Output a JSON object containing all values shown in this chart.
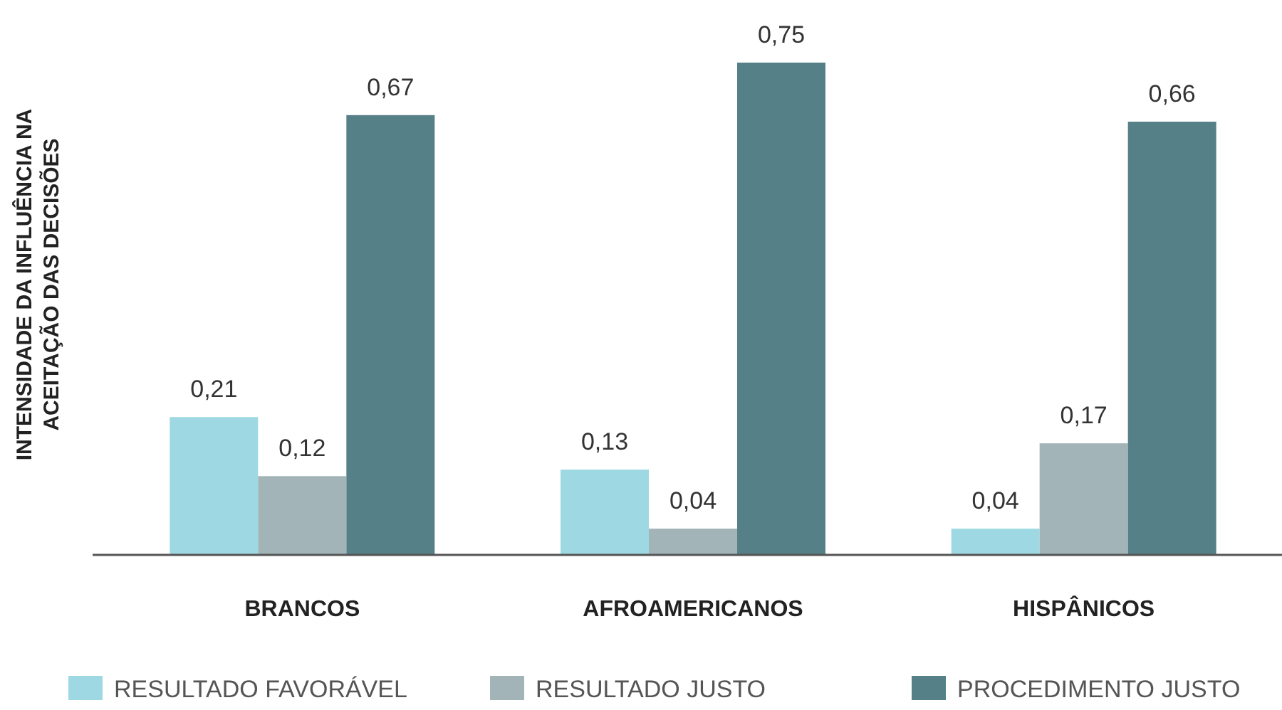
{
  "chart_data": {
    "type": "bar",
    "ylabel": "INTENSIDADE DA INFLUÊNCIA NA ACEITAÇÃO DAS DECISÕES",
    "categories": [
      "BRANCOS",
      "AFROAMERICANOS",
      "HISPÂNICOS"
    ],
    "series": [
      {
        "name": "RESULTADO FAVORÁVEL",
        "color": "#9ed9e3",
        "values": [
          0.21,
          0.13,
          0.04
        ],
        "value_labels": [
          "0,21",
          "0,13",
          "0,04"
        ]
      },
      {
        "name": "RESULTADO JUSTO",
        "color": "#a2b4b8",
        "values": [
          0.12,
          0.04,
          0.17
        ],
        "value_labels": [
          "0,12",
          "0,04",
          "0,17"
        ]
      },
      {
        "name": "PROCEDIMENTO JUSTO",
        "color": "#568087",
        "values": [
          0.67,
          0.75,
          0.66
        ],
        "value_labels": [
          "0,67",
          "0,75",
          "0,66"
        ]
      }
    ],
    "legend": "bottom"
  }
}
